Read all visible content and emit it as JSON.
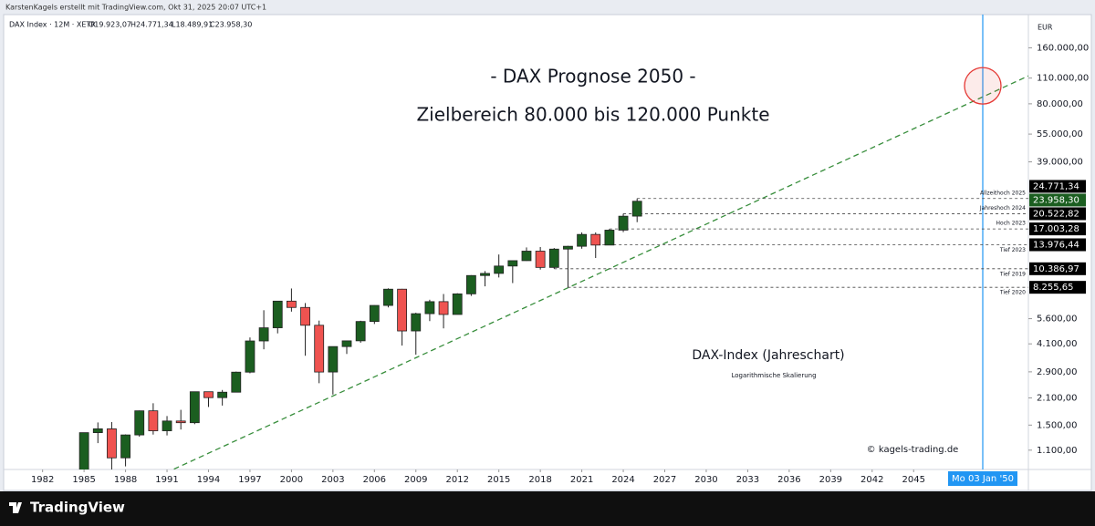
{
  "header": {
    "text": "KarstenKagels erstellt mit TradingView.com, Okt 31, 2025 20:07 UTC+1"
  },
  "footer": {
    "logo": "TradingView"
  },
  "chart_data": {
    "type": "candlestick",
    "symbol": "DAX Index · 12M · XETR",
    "legend_labels": [
      "O19.923,07",
      "H24.771,34",
      "L18.489,91",
      "C23.958,30"
    ],
    "currency": "EUR",
    "title": "- DAX Prognose 2050 -",
    "subtitle": "Zielbereich 80.000 bis 120.000 Punkte",
    "annotations": [
      "DAX-Index (Jahreschart)",
      "Logarithmische Skalierung",
      "© kagels-trading.de"
    ],
    "x": [
      1985,
      1986,
      1987,
      1988,
      1989,
      1990,
      1991,
      1992,
      1993,
      1994,
      1995,
      1996,
      1997,
      1998,
      1999,
      2000,
      2001,
      2002,
      2003,
      2004,
      2005,
      2006,
      2007,
      2008,
      2009,
      2010,
      2011,
      2012,
      2013,
      2014,
      2015,
      2016,
      2017,
      2018,
      2019,
      2020,
      2021,
      2022,
      2023,
      2024,
      2025
    ],
    "open": [
      860,
      1366,
      1432,
      1000,
      1328,
      1790,
      1398,
      1578,
      1545,
      2267,
      2107,
      2254,
      2889,
      4250,
      5002,
      6958,
      6434,
      5160,
      2893,
      3965,
      4256,
      5408,
      6597,
      8067,
      4810,
      5957,
      6914,
      5898,
      7612,
      9552,
      9806,
      10743,
      11481,
      12918,
      10559,
      13249,
      13719,
      15885,
      13924,
      16752,
      19923.07
    ],
    "high": [
      1366,
      1550,
      1557,
      1337,
      1797,
      1966,
      1678,
      1812,
      2267,
      2271,
      2317,
      2909,
      4438,
      6217,
      6958,
      8136,
      6795,
      5467,
      3965,
      4261,
      5458,
      6611,
      8152,
      8100,
      6026,
      7078,
      7600,
      7672,
      9594,
      10093,
      12391,
      11481,
      13526,
      13597,
      13425,
      13795,
      16290,
      16285,
      17003.28,
      20522.82,
      24771.34
    ],
    "low": [
      860,
      1200,
      852,
      900,
      1300,
      1334,
      1320,
      1420,
      1517,
      1877,
      1910,
      2250,
      2848,
      3833,
      4668,
      6110,
      3540,
      2519,
      2189,
      3618,
      4158,
      5243,
      6437,
      4014,
      3588,
      5433,
      4966,
      5900,
      7419,
      8355,
      9325,
      8699,
      11450,
      10279,
      10386.97,
      8255.65,
      13311,
      11863,
      13976.44,
      16345,
      18489.91
    ],
    "close": [
      1366,
      1432,
      1000,
      1328,
      1790,
      1398,
      1578,
      1545,
      2267,
      2107,
      2254,
      2889,
      4250,
      5002,
      6958,
      6434,
      5160,
      2893,
      3965,
      4256,
      5408,
      6597,
      8067,
      4810,
      5957,
      6914,
      5898,
      7612,
      9552,
      9806,
      10743,
      11481,
      12918,
      10559,
      13249,
      13719,
      15885,
      13924,
      16752,
      19909,
      23958.3
    ],
    "up_color": "#1b5e20",
    "down_color": "#ef5350",
    "log_scale": true,
    "xlim": [
      1978.92,
      2053.3
    ],
    "xticks": [
      1982,
      1985,
      1988,
      1991,
      1994,
      1997,
      2000,
      2003,
      2006,
      2009,
      2012,
      2015,
      2018,
      2021,
      2024,
      2027,
      2030,
      2033,
      2036,
      2039,
      2042,
      2045
    ],
    "ylim": [
      866,
      236000
    ],
    "yticks": [
      {
        "value": 1100,
        "label": "1.100,00"
      },
      {
        "value": 1500,
        "label": "1.500,00"
      },
      {
        "value": 2100,
        "label": "2.100,00"
      },
      {
        "value": 2900,
        "label": "2.900,00"
      },
      {
        "value": 4100,
        "label": "4.100,00"
      },
      {
        "value": 5600,
        "label": "5.600,00"
      },
      {
        "value": 39000,
        "label": "39.000,00"
      },
      {
        "value": 55000,
        "label": "55.000,00"
      },
      {
        "value": 80000,
        "label": "80.000,00"
      },
      {
        "value": 110000,
        "label": "110.000,00"
      },
      {
        "value": 160000,
        "label": "160.000,00"
      }
    ],
    "price_lines": [
      {
        "label": "Allzeithoch 2025",
        "value": 24771.34,
        "value_label": "24.771,34",
        "from": 2025
      },
      {
        "label": "Jahreshoch 2024",
        "value": 20522.82,
        "value_label": "20.522,82",
        "from": 2024
      },
      {
        "label": "Hoch 2023",
        "value": 17003.28,
        "value_label": "17.003,28",
        "from": 2023
      },
      {
        "label": "Tief 2023",
        "value": 13976.44,
        "value_label": "13.976,44",
        "from": 2021.7
      },
      {
        "label": "Tief 2019",
        "value": 10386.97,
        "value_label": "10.386,97",
        "from": 2019
      },
      {
        "label": "Tief 2020",
        "value": 8255.65,
        "value_label": "8.255,65",
        "from": 2020
      }
    ],
    "last_price_label": "23.958,30",
    "last_price_color": "#1b5e20",
    "trendline": {
      "color": "#388e3c",
      "x": [
        1991.5,
        2053.3
      ],
      "values": [
        870,
        113000
      ]
    },
    "target": {
      "x": 2050,
      "value": 100000,
      "color": "#e53935"
    },
    "crosshair": {
      "x": 2050,
      "label": "Mo 03 Jan '50",
      "color": "#2196f3"
    }
  }
}
